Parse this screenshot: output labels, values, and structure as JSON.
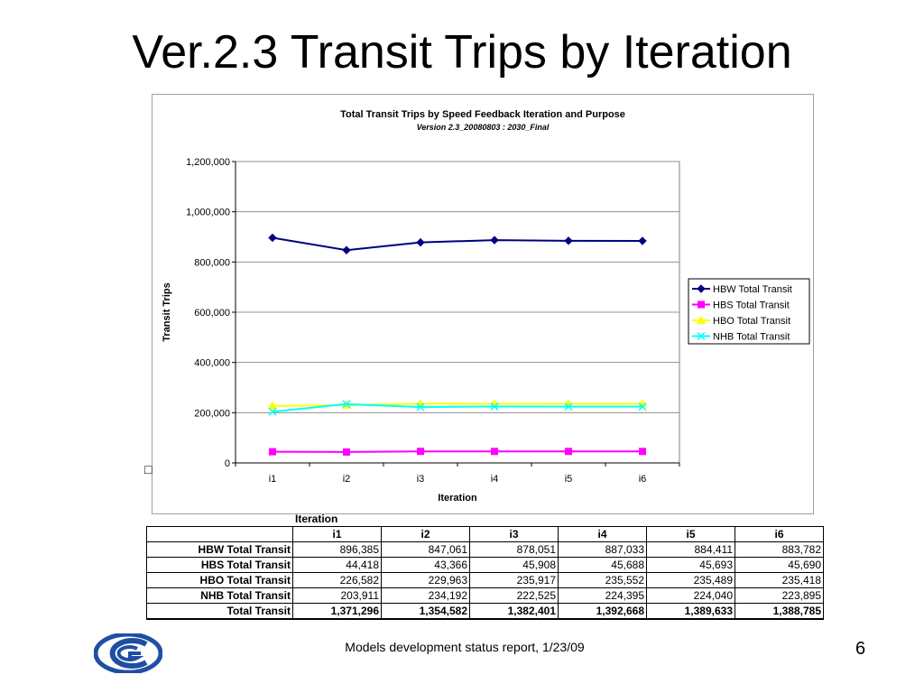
{
  "slide": {
    "title": "Ver.2.3 Transit Trips by Iteration",
    "footer": "Models development status report, 1/23/09",
    "page_number": "6",
    "stray_glyph": "□"
  },
  "colors": {
    "hbw": "#000080",
    "hbs": "#ff00ff",
    "hbo": "#ffff00",
    "nhb": "#00ffff",
    "logo": "#1f4fa3"
  },
  "chart_data": {
    "type": "line",
    "title": "Total Transit Trips  by Speed Feedback Iteration and  Purpose",
    "subtitle": "Version 2.3_20080803 : 2030_Final",
    "xlabel": "Iteration",
    "ylabel": "Transit Trips",
    "categories": [
      "i1",
      "i2",
      "i3",
      "i4",
      "i5",
      "i6"
    ],
    "ylim": [
      0,
      1200000
    ],
    "yticks": [
      0,
      200000,
      400000,
      600000,
      800000,
      1000000,
      1200000
    ],
    "ytick_labels": [
      "0",
      "200,000",
      "400,000",
      "600,000",
      "800,000",
      "1,000,000",
      "1,200,000"
    ],
    "grid": true,
    "legend_position": "right",
    "series": [
      {
        "name": "HBW Total Transit",
        "values": [
          896385,
          847061,
          878051,
          887033,
          884411,
          883782
        ],
        "color": "#000080",
        "marker": "diamond"
      },
      {
        "name": "HBS Total Transit",
        "values": [
          44418,
          43366,
          45908,
          45688,
          45693,
          45690
        ],
        "color": "#ff00ff",
        "marker": "square"
      },
      {
        "name": "HBO Total Transit",
        "values": [
          226582,
          229963,
          235917,
          235552,
          235489,
          235418
        ],
        "color": "#ffff00",
        "marker": "triangle"
      },
      {
        "name": "NHB Total Transit",
        "values": [
          203911,
          234192,
          222525,
          224395,
          224040,
          223895
        ],
        "color": "#00ffff",
        "marker": "x"
      }
    ]
  },
  "table": {
    "caption": "Iteration",
    "headers": [
      "i1",
      "i2",
      "i3",
      "i4",
      "i5",
      "i6"
    ],
    "rows": [
      {
        "label": "HBW Total Transit",
        "cells": [
          "896,385",
          "847,061",
          "878,051",
          "887,033",
          "884,411",
          "883,782"
        ]
      },
      {
        "label": "HBS Total Transit",
        "cells": [
          "44,418",
          "43,366",
          "45,908",
          "45,688",
          "45,693",
          "45,690"
        ]
      },
      {
        "label": "HBO Total Transit",
        "cells": [
          "226,582",
          "229,963",
          "235,917",
          "235,552",
          "235,489",
          "235,418"
        ]
      },
      {
        "label": "NHB Total Transit",
        "cells": [
          "203,911",
          "234,192",
          "222,525",
          "224,395",
          "224,040",
          "223,895"
        ]
      },
      {
        "label": "Total Transit",
        "cells": [
          "1,371,296",
          "1,354,582",
          "1,382,401",
          "1,392,668",
          "1,389,633",
          "1,388,785"
        ]
      }
    ]
  }
}
